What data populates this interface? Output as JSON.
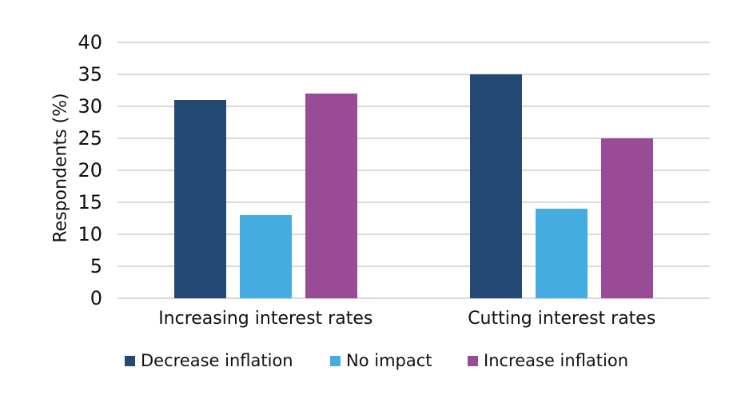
{
  "chart_data": {
    "type": "bar",
    "title": "",
    "ylabel": "Respondents (%)",
    "xlabel": "",
    "ylim": [
      0,
      40
    ],
    "yticks": [
      0,
      5,
      10,
      15,
      20,
      25,
      30,
      35,
      40
    ],
    "grid": true,
    "legend_position": "bottom",
    "categories": [
      "Increasing interest rates",
      "Cutting interest rates"
    ],
    "series": [
      {
        "name": "Decrease inflation",
        "color": "#234873",
        "values": [
          31,
          35
        ]
      },
      {
        "name": "No impact",
        "color": "#45ACE1",
        "values": [
          13,
          14
        ]
      },
      {
        "name": "Increase inflation",
        "color": "#9A4B96",
        "values": [
          32,
          25
        ]
      }
    ],
    "gridline_color": "#D9D9D9",
    "text_color": "#111111",
    "background_color": "#FFFFFF"
  }
}
